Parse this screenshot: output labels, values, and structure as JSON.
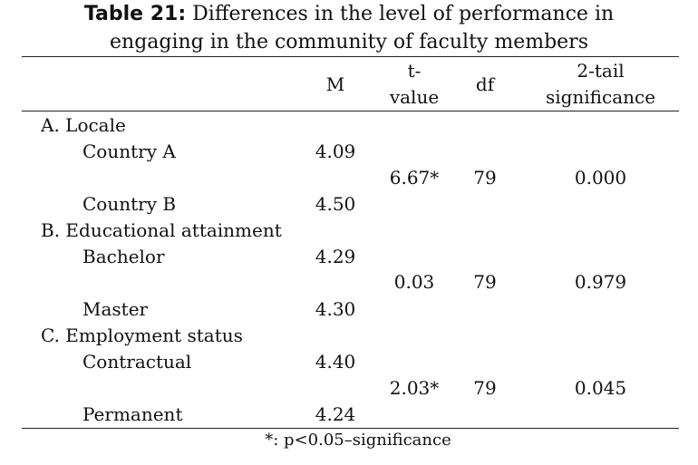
{
  "caption": {
    "label": "Table 21:",
    "line1": "Differences in the level of performance in",
    "line2": "engaging in the community of faculty members"
  },
  "headers": {
    "m": "M",
    "t_line1": "t-",
    "t_line2": "value",
    "df": "df",
    "sig_line1": "2-tail",
    "sig_line2": "significance"
  },
  "groups": [
    {
      "title": "A. Locale",
      "rows": [
        {
          "label": "Country A",
          "m": "4.09"
        },
        {
          "label": "Country B",
          "m": "4.50"
        }
      ],
      "t": "6.67*",
      "df": "79",
      "sig": "0.000"
    },
    {
      "title": "B. Educational attainment",
      "rows": [
        {
          "label": "Bachelor",
          "m": "4.29"
        },
        {
          "label": "Master",
          "m": "4.30"
        }
      ],
      "t": "0.03",
      "df": "79",
      "sig": "0.979"
    },
    {
      "title": "C. Employment status",
      "rows": [
        {
          "label": "Contractual",
          "m": "4.40"
        },
        {
          "label": "Permanent",
          "m": "4.24"
        }
      ],
      "t": "2.03*",
      "df": "79",
      "sig": "0.045"
    }
  ],
  "footnote": "*: p<0.05–significance"
}
